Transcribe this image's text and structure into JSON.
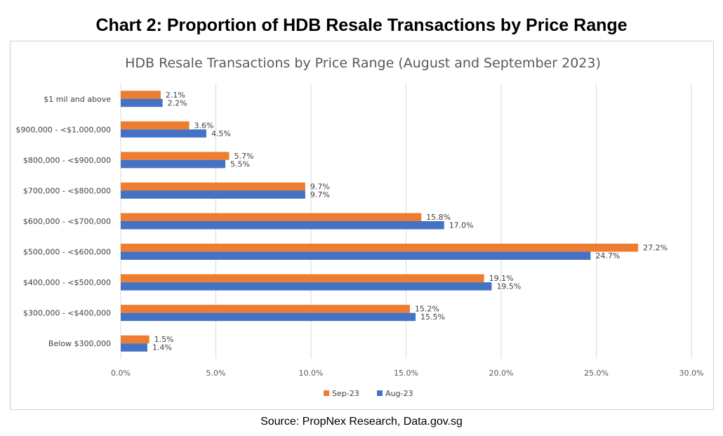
{
  "heading": "Chart 2: Proportion of HDB Resale Transactions by Price Range",
  "source": "Source: PropNex Research, Data.gov.sg",
  "colors": {
    "sep": "#ED7D31",
    "aug": "#4472C4",
    "grid": "#d9d9d9"
  },
  "chart_data": {
    "type": "bar",
    "orientation": "horizontal",
    "title": "HDB Resale Transactions by Price Range (August and September 2023)",
    "xlabel": "",
    "ylabel": "",
    "xlim": [
      0,
      30
    ],
    "xticks": [
      "0.0%",
      "5.0%",
      "10.0%",
      "15.0%",
      "20.0%",
      "25.0%",
      "30.0%"
    ],
    "grid": true,
    "legend": "bottom",
    "categories": [
      "$1 mil and above",
      "$900,000 - <$1,000,000",
      "$800,000 - <$900,000",
      "$700,000 - <$800,000",
      "$600,000 - <$700,000",
      "$500,000 - <$600,000",
      "$400,000 - <$500,000",
      "$300,000 - <$400,000",
      "Below $300,000"
    ],
    "series": [
      {
        "name": "Sep-23",
        "values": [
          2.1,
          3.6,
          5.7,
          9.7,
          15.8,
          27.2,
          19.1,
          15.2,
          1.5
        ],
        "labels": [
          "2.1%",
          "3.6%",
          "5.7%",
          "9.7%",
          "15.8%",
          "27.2%",
          "19.1%",
          "15.2%",
          "1.5%"
        ]
      },
      {
        "name": "Aug-23",
        "values": [
          2.2,
          4.5,
          5.5,
          9.7,
          17.0,
          24.7,
          19.5,
          15.5,
          1.4
        ],
        "labels": [
          "2.2%",
          "4.5%",
          "5.5%",
          "9.7%",
          "17.0%",
          "24.7%",
          "19.5%",
          "15.5%",
          "1.4%"
        ]
      }
    ]
  }
}
